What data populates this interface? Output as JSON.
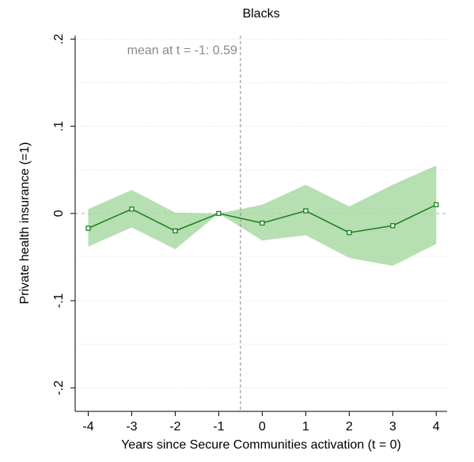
{
  "chart_data": {
    "type": "line",
    "title": "Blacks",
    "x_label": "Years since Secure Communities activation (t = 0)",
    "y_label": "Private health insurance (=1)",
    "annotation": "mean at t = -1: 0.59",
    "x": [
      -4,
      -3,
      -2,
      -1,
      0,
      1,
      2,
      3,
      4
    ],
    "series": [
      {
        "color": "#1a7f1a",
        "band_color": "#a9d9a4",
        "values": [
          -0.017,
          0.005,
          -0.02,
          0,
          -0.011,
          0.003,
          -0.022,
          -0.014,
          0.01
        ],
        "upper": [
          0.005,
          0.027,
          0.001,
          0,
          0.01,
          0.033,
          0.008,
          0.033,
          0.055
        ],
        "lower": [
          -0.038,
          -0.016,
          -0.041,
          0,
          -0.031,
          -0.025,
          -0.051,
          -0.06,
          -0.035
        ]
      }
    ],
    "xlim": [
      -4.3,
      4.25
    ],
    "xticks": [
      -4,
      -3,
      -2,
      -1,
      0,
      1,
      2,
      3,
      4
    ],
    "ylim": [
      -0.227,
      0.204
    ],
    "yticks": [
      {
        "value": 0.2,
        "label": ".2"
      },
      {
        "value": 0.1,
        "label": ".1"
      },
      0,
      {
        "value": -0.1,
        "label": "-.1"
      },
      {
        "value": -0.2,
        "label": "-.2"
      }
    ],
    "minor_grid": [
      0.15,
      0.05,
      -0.05,
      -0.15
    ],
    "vline": -0.5,
    "hline": 0,
    "grid": true
  }
}
